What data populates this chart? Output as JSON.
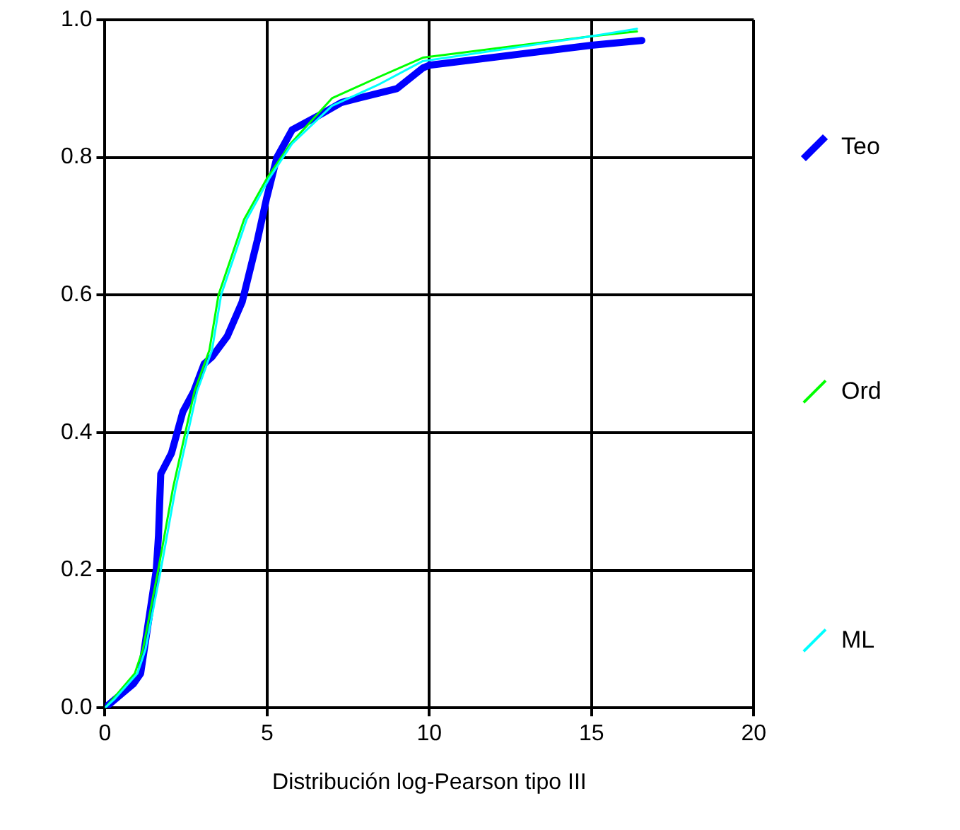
{
  "chart_data": {
    "type": "line",
    "xlabel": "Distribución log-Pearson tipo III",
    "xlim": [
      0,
      20
    ],
    "xticks": [
      0,
      5,
      10,
      15,
      20
    ],
    "ylim": [
      0,
      1
    ],
    "yticks": [
      {
        "value": 0,
        "label": "0.0"
      },
      {
        "value": 0.2,
        "label": "0.2"
      },
      {
        "value": 0.4,
        "label": "0.4"
      },
      {
        "value": 0.6,
        "label": "0.6"
      },
      {
        "value": 0.8,
        "label": "0.8"
      },
      {
        "value": 1,
        "label": "1.0"
      }
    ],
    "grid": true,
    "legend": "right",
    "marker": "none",
    "line_style": "solid",
    "series": [
      {
        "name": "Teo",
        "color": "#0000ff",
        "x": [
          0,
          0.88,
          1.1,
          1.26,
          1.58,
          1.65,
          1.72,
          2.05,
          2.4,
          2.74,
          3.06,
          3.3,
          3.77,
          4.23,
          4.7,
          4.98,
          5.3,
          5.77,
          6.56,
          7.3,
          9.0,
          9.8,
          10.0,
          15.0,
          16.55
        ],
        "values": [
          0,
          0.035,
          0.05,
          0.1,
          0.2,
          0.25,
          0.34,
          0.37,
          0.43,
          0.46,
          0.5,
          0.51,
          0.54,
          0.59,
          0.68,
          0.74,
          0.8,
          0.84,
          0.86,
          0.88,
          0.9,
          0.93,
          0.934,
          0.963,
          0.97
        ]
      },
      {
        "name": "Ord",
        "color": "#00ff00",
        "x": [
          0,
          0.25,
          0.92,
          1.17,
          1.64,
          2.1,
          2.76,
          3.22,
          3.5,
          4.29,
          5.0,
          5.72,
          7.0,
          8.4,
          9.8,
          15.0,
          16.4
        ],
        "values": [
          0,
          0.013,
          0.05,
          0.085,
          0.2,
          0.32,
          0.46,
          0.52,
          0.6,
          0.71,
          0.77,
          0.82,
          0.886,
          0.916,
          0.945,
          0.976,
          0.983
        ]
      },
      {
        "name": "ML",
        "color": "#00ffff",
        "x": [
          0,
          0.3,
          1.0,
          1.25,
          1.72,
          2.18,
          2.84,
          3.3,
          3.58,
          4.37,
          5.07,
          5.77,
          7.0,
          8.4,
          9.8,
          15.0,
          16.4
        ],
        "values": [
          0,
          0.013,
          0.05,
          0.085,
          0.2,
          0.32,
          0.46,
          0.52,
          0.6,
          0.71,
          0.77,
          0.82,
          0.875,
          0.905,
          0.94,
          0.976,
          0.987
        ]
      }
    ]
  }
}
